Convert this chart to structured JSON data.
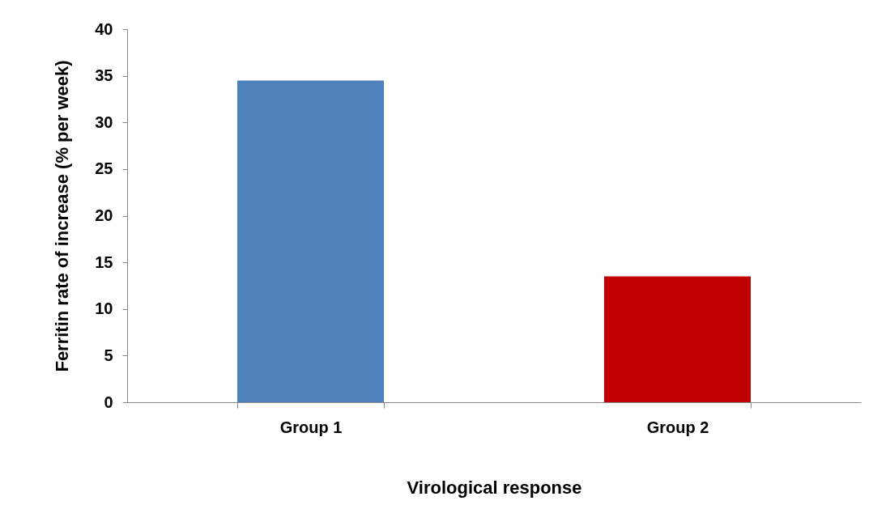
{
  "chart_data": {
    "type": "bar",
    "xlabel": "Virological response",
    "ylabel": "Ferritin rate of increase (% per week)",
    "categories": [
      "Group 1",
      "Group 2"
    ],
    "values": [
      34.5,
      13.5
    ],
    "colors": [
      "#4f81bd",
      "#c00000"
    ],
    "ylim": [
      0,
      40
    ],
    "yticks": [
      0,
      5,
      10,
      15,
      20,
      25,
      30,
      35,
      40
    ],
    "grid": false,
    "legend": false
  }
}
